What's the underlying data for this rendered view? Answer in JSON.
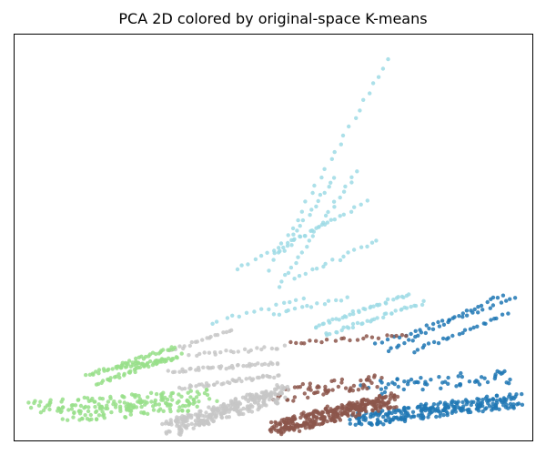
{
  "chart_data": {
    "type": "scatter",
    "title": "PCA 2D colored by original-space K-means",
    "xlabel": "",
    "ylabel": "",
    "xticks": "none",
    "yticks": "none",
    "grid": false,
    "legend": "none",
    "note": "Points are synthetic approximations of the depicted clusters; axes have no ticks or labels in the original.",
    "xlim": [
      0,
      100
    ],
    "ylim": [
      0,
      100
    ],
    "series": [
      {
        "color": "#9edae5",
        "strands": [
          {
            "x0": 49,
            "y0": 42,
            "x1": 72,
            "y1": 94,
            "n": 26
          },
          {
            "x0": 51,
            "y0": 38,
            "x1": 66,
            "y1": 66,
            "n": 24
          },
          {
            "x0": 43,
            "y0": 42,
            "x1": 61,
            "y1": 54,
            "n": 16
          },
          {
            "x0": 52,
            "y0": 47,
            "x1": 62,
            "y1": 65,
            "n": 16
          },
          {
            "x0": 50,
            "y0": 46,
            "x1": 68,
            "y1": 59,
            "n": 18
          },
          {
            "x0": 54,
            "y0": 40,
            "x1": 70,
            "y1": 49,
            "n": 16
          },
          {
            "x0": 50,
            "y0": 31,
            "x1": 64,
            "y1": 35,
            "n": 14
          },
          {
            "x0": 58,
            "y0": 28,
            "x1": 76,
            "y1": 36,
            "n": 36
          },
          {
            "x0": 60,
            "y0": 26,
            "x1": 79,
            "y1": 34,
            "n": 34
          },
          {
            "x0": 38,
            "y0": 29,
            "x1": 56,
            "y1": 35,
            "n": 14
          }
        ]
      },
      {
        "color": "#1f77b4",
        "strands": [
          {
            "x0": 72,
            "y0": 22,
            "x1": 94,
            "y1": 36,
            "n": 30
          },
          {
            "x0": 70,
            "y0": 24,
            "x1": 97,
            "y1": 35,
            "n": 26
          },
          {
            "x0": 77,
            "y0": 22,
            "x1": 95,
            "y1": 31,
            "n": 24
          },
          {
            "x0": 68,
            "y0": 13,
            "x1": 96,
            "y1": 16,
            "n": 60
          },
          {
            "x0": 66,
            "y0": 5,
            "x1": 97,
            "y1": 10,
            "n": 260
          }
        ]
      },
      {
        "color": "#8c564b",
        "strands": [
          {
            "x0": 53,
            "y0": 24,
            "x1": 76,
            "y1": 26,
            "n": 22
          },
          {
            "x0": 51,
            "y0": 11,
            "x1": 70,
            "y1": 15,
            "n": 60
          },
          {
            "x0": 50,
            "y0": 3,
            "x1": 73,
            "y1": 10,
            "n": 340
          }
        ]
      },
      {
        "color": "#c7c7c7",
        "strands": [
          {
            "x0": 30,
            "y0": 22,
            "x1": 42,
            "y1": 27,
            "n": 20
          },
          {
            "x0": 34,
            "y0": 21,
            "x1": 52,
            "y1": 23,
            "n": 22
          },
          {
            "x0": 30,
            "y0": 17,
            "x1": 51,
            "y1": 19,
            "n": 40
          },
          {
            "x0": 32,
            "y0": 13,
            "x1": 51,
            "y1": 16,
            "n": 40
          },
          {
            "x0": 30,
            "y0": 3,
            "x1": 52,
            "y1": 12,
            "n": 300
          }
        ]
      },
      {
        "color": "#98df8a",
        "strands": [
          {
            "x0": 14,
            "y0": 16,
            "x1": 31,
            "y1": 23,
            "n": 40
          },
          {
            "x0": 16,
            "y0": 14,
            "x1": 32,
            "y1": 21,
            "n": 40
          },
          {
            "x0": 20,
            "y0": 18,
            "x1": 30,
            "y1": 20,
            "n": 30
          },
          {
            "x0": 4,
            "y0": 8,
            "x1": 38,
            "y1": 11,
            "n": 120
          },
          {
            "x0": 10,
            "y0": 6,
            "x1": 34,
            "y1": 9,
            "n": 90
          }
        ]
      }
    ]
  }
}
